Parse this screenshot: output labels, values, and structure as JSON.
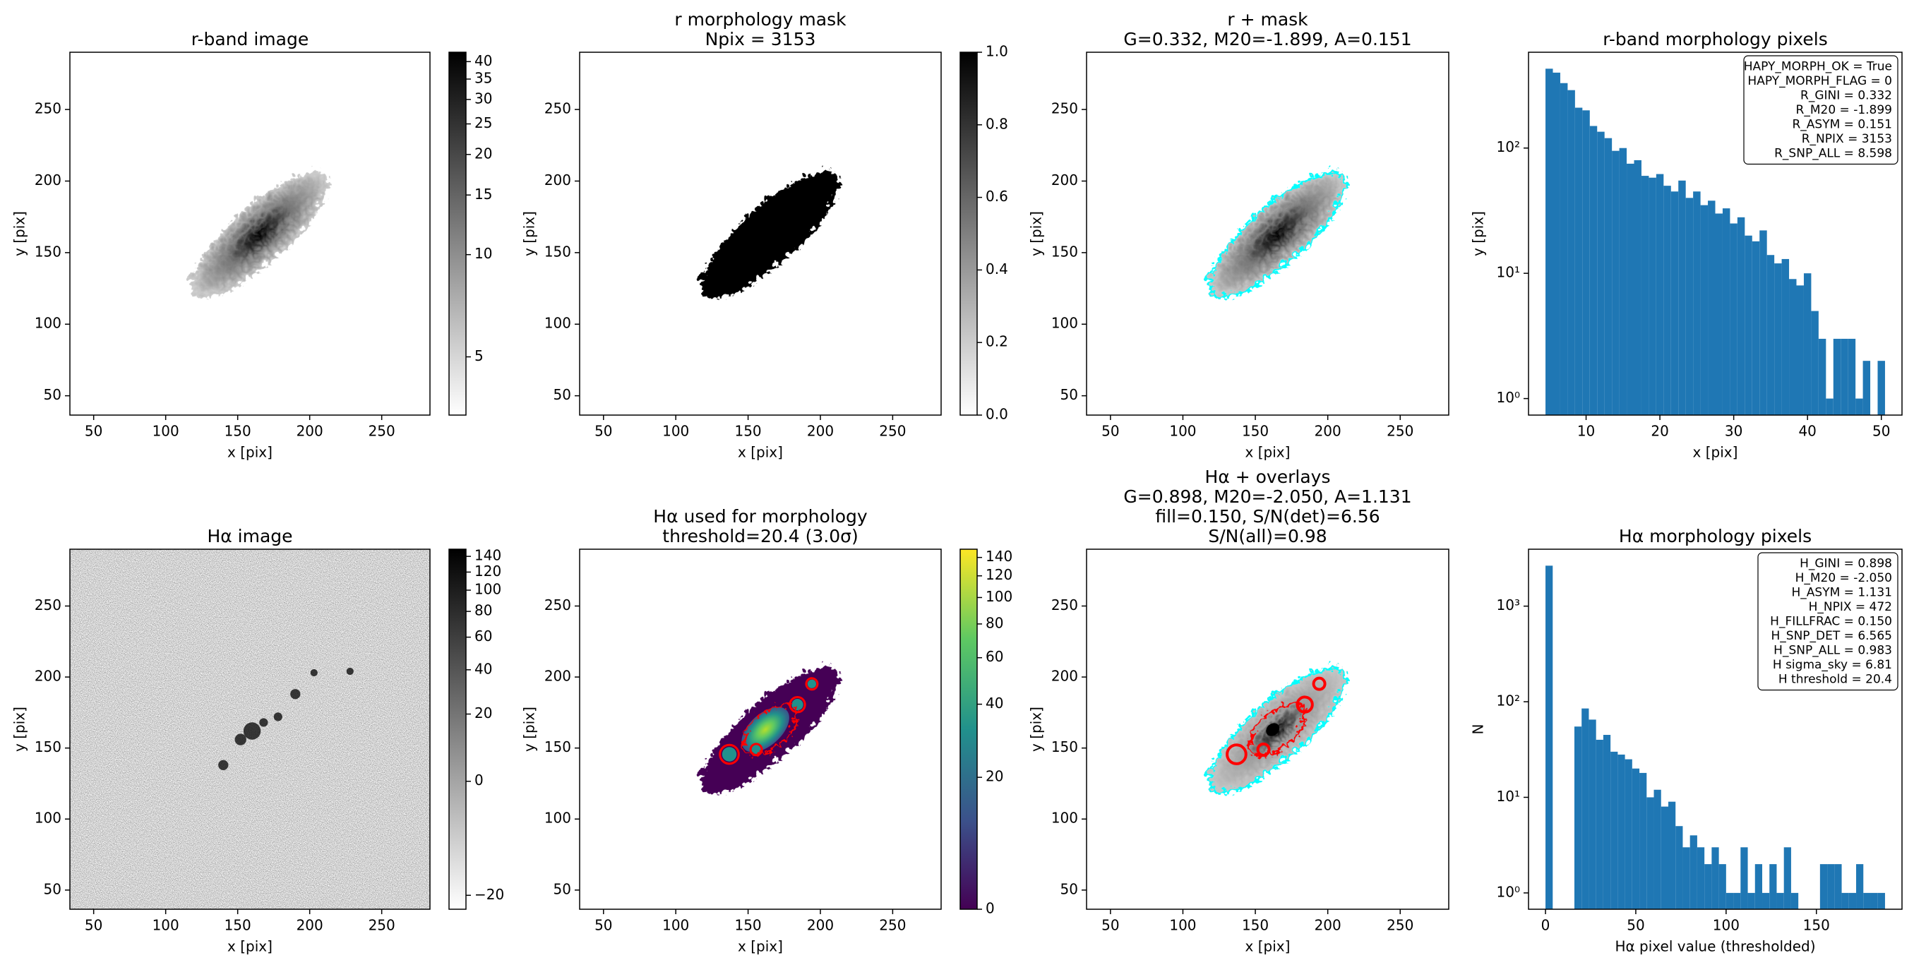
{
  "chart_data": [
    {
      "type": "image",
      "title": [
        "r-band image"
      ],
      "xlabel": "x [pix]",
      "ylabel": "y [pix]",
      "xlim": [
        33.5,
        283.5
      ],
      "ylim": [
        36.5,
        290
      ],
      "xticks": [
        50,
        100,
        150,
        200,
        250
      ],
      "yticks": [
        50,
        100,
        150,
        200,
        250
      ],
      "colormap": "gray_r",
      "colorbar": {
        "lim": [
          3,
          43
        ],
        "scale": "asinh",
        "ticks": [
          5,
          10,
          15,
          20,
          25,
          30,
          35,
          40
        ]
      }
    },
    {
      "type": "image",
      "title": [
        "r morphology mask",
        "Npix = 3153"
      ],
      "xlabel": "x [pix]",
      "ylabel": "y [pix]",
      "xlim": [
        33.5,
        283.5
      ],
      "ylim": [
        36.5,
        290
      ],
      "xticks": [
        50,
        100,
        150,
        200,
        250
      ],
      "yticks": [
        50,
        100,
        150,
        200,
        250
      ],
      "colormap": "gray_r",
      "colorbar": {
        "lim": [
          0,
          1
        ],
        "scale": "linear",
        "ticks": [
          {
            "value": 0,
            "label": "0.0"
          },
          {
            "value": 0.2,
            "label": "0.2"
          },
          {
            "value": 0.4,
            "label": "0.4"
          },
          {
            "value": 0.6,
            "label": "0.6"
          },
          {
            "value": 0.8,
            "label": "0.8"
          },
          {
            "value": 1,
            "label": "1.0"
          }
        ]
      }
    },
    {
      "type": "image",
      "title": [
        "r + mask",
        "G=0.332, M20=-1.899, A=0.151"
      ],
      "xlabel": "x [pix]",
      "ylabel": "y [pix]",
      "xlim": [
        33.5,
        283.5
      ],
      "ylim": [
        36.5,
        290
      ],
      "xticks": [
        50,
        100,
        150,
        200,
        250
      ],
      "yticks": [
        50,
        100,
        150,
        200,
        250
      ],
      "colormap": "gray_r",
      "contour_colors": [
        "cyan"
      ]
    },
    {
      "type": "histogram",
      "title": [
        "r-band morphology pixels"
      ],
      "xlabel": "x [pix]",
      "ylabel": "y [pix]",
      "bins": [
        4.5,
        5.5,
        6.5,
        7.5,
        8.5,
        9.5,
        10.5,
        11.5,
        12.5,
        13.5,
        14.5,
        15.5,
        16.5,
        17.5,
        18.5,
        19.5,
        20.5,
        21.5,
        22.5,
        23.5,
        24.5,
        25.5,
        26.5,
        27.5,
        28.5,
        29.5,
        30.5,
        31.5,
        32.5,
        33.5,
        34.5,
        35.5,
        36.5,
        37.5,
        38.5,
        39.5,
        40.5,
        41.5,
        42.5,
        43.5,
        44.5,
        45.5,
        46.5,
        47.5,
        48.5,
        49.5,
        50.5
      ],
      "values": [
        430,
        400,
        330,
        290,
        210,
        200,
        150,
        135,
        120,
        95,
        100,
        75,
        80,
        60,
        58,
        62,
        50,
        45,
        55,
        40,
        45,
        35,
        38,
        30,
        33,
        25,
        28,
        20,
        18,
        22,
        14,
        12,
        13,
        9,
        8,
        10,
        5,
        3,
        1,
        3,
        3,
        3,
        1,
        2,
        0,
        2
      ],
      "color": "#1f77b4",
      "log_y": true,
      "xlim": [
        2.2,
        52.8
      ],
      "ylim": [
        0.738,
        582
      ],
      "xticks": [
        10,
        20,
        30,
        40,
        50
      ],
      "yticks": [
        {
          "value": 1,
          "label": "10⁰"
        },
        {
          "value": 10,
          "label": "10¹"
        },
        {
          "value": 100,
          "label": "10²"
        }
      ],
      "annotation": [
        "HAPY_MORPH_OK = True",
        "HAPY_MORPH_FLAG = 0",
        "R_GINI = 0.332",
        "R_M20 = -1.899",
        "R_ASYM = 0.151",
        "R_NPIX = 3153",
        "R_SNP_ALL = 8.598"
      ]
    },
    {
      "type": "image",
      "title": [
        "Hα image"
      ],
      "xlabel": "x [pix]",
      "ylabel": "y [pix]",
      "xlim": [
        33.5,
        283.5
      ],
      "ylim": [
        36.5,
        290
      ],
      "xticks": [
        50,
        100,
        150,
        200,
        250
      ],
      "yticks": [
        50,
        100,
        150,
        200,
        250
      ],
      "colormap": "gray_r",
      "colorbar": {
        "lim": [
          -22,
          150
        ],
        "scale": "asinh",
        "ticks": [
          {
            "value": -20,
            "label": "−20"
          },
          0,
          20,
          40,
          60,
          80,
          100,
          120,
          140
        ]
      }
    },
    {
      "type": "image",
      "title": [
        "Hα used for morphology",
        "threshold=20.4 (3.0σ)"
      ],
      "xlabel": "x [pix]",
      "ylabel": "y [pix]",
      "xlim": [
        33.5,
        283.5
      ],
      "ylim": [
        36.5,
        290
      ],
      "xticks": [
        50,
        100,
        150,
        200,
        250
      ],
      "yticks": [
        50,
        100,
        150,
        200,
        250
      ],
      "colormap": "viridis",
      "contour_colors": [
        "red"
      ],
      "colorbar": {
        "lim": [
          0,
          150
        ],
        "scale": "asinh",
        "ticks": [
          0,
          20,
          40,
          60,
          80,
          100,
          120,
          140
        ]
      }
    },
    {
      "type": "image",
      "title": [
        "Hα + overlays",
        "G=0.898, M20=-2.050, A=1.131",
        "fill=0.150, S/N(det)=6.56",
        "S/N(all)=0.98"
      ],
      "xlabel": "x [pix]",
      "ylabel": "y [pix]",
      "xlim": [
        33.5,
        283.5
      ],
      "ylim": [
        36.5,
        290
      ],
      "xticks": [
        50,
        100,
        150,
        200,
        250
      ],
      "yticks": [
        50,
        100,
        150,
        200,
        250
      ],
      "colormap": "gray_r",
      "contour_colors": [
        "cyan",
        "red"
      ]
    },
    {
      "type": "histogram",
      "title": [
        "Hα morphology pixels"
      ],
      "xlabel": "Hα pixel value (thresholded)",
      "ylabel": "N",
      "bins": [
        0,
        4,
        8,
        12,
        16,
        20,
        24,
        28,
        32,
        36,
        40,
        44,
        48,
        52,
        56,
        60,
        64,
        68,
        72,
        76,
        80,
        84,
        88,
        92,
        96,
        100,
        104,
        108,
        112,
        116,
        120,
        124,
        128,
        132,
        136,
        140,
        144,
        148,
        152,
        156,
        160,
        164,
        168,
        172,
        176,
        180,
        184,
        188
      ],
      "values": [
        2650,
        0,
        0,
        0,
        55,
        85,
        65,
        40,
        45,
        30,
        28,
        25,
        20,
        18,
        10,
        12,
        8,
        9,
        5,
        3,
        4,
        3,
        2,
        3,
        2,
        1,
        1,
        3,
        1,
        2,
        1,
        2,
        1,
        3,
        1,
        0,
        0,
        0,
        2,
        2,
        2,
        1,
        1,
        2,
        1,
        1,
        1
      ],
      "color": "#1f77b4",
      "log_y": true,
      "xlim": [
        -9.4,
        197.4
      ],
      "ylim": [
        0.675,
        3940
      ],
      "xticks": [
        0,
        50,
        100,
        150
      ],
      "yticks": [
        {
          "value": 1,
          "label": "10⁰"
        },
        {
          "value": 10,
          "label": "10¹"
        },
        {
          "value": 100,
          "label": "10²"
        },
        {
          "value": 1000,
          "label": "10³"
        }
      ],
      "annotation": [
        "H_GINI = 0.898",
        "H_M20 = -2.050",
        "H_ASYM = 1.131",
        "H_NPIX = 472",
        "H_FILLFRAC = 0.150",
        "H_SNP_DET = 6.565",
        "H_SNP_ALL = 0.983",
        "H sigma_sky = 6.81",
        "H threshold = 20.4"
      ]
    }
  ]
}
